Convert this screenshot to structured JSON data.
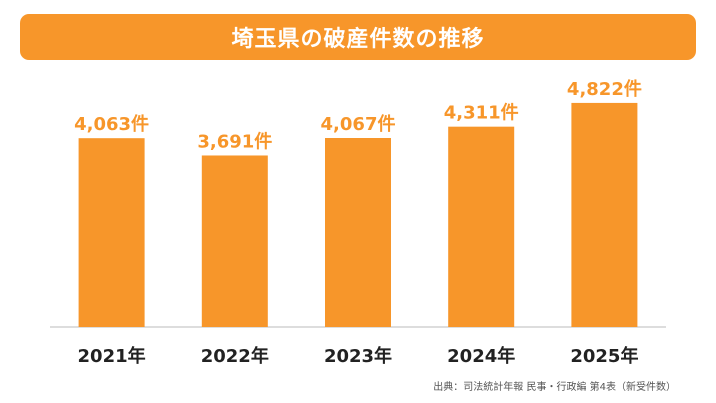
{
  "title": "埼玉県の破産件数の推移",
  "source": "出典：司法統計年報 民事・行政編 第4表（新受件数）",
  "colors": {
    "bar": "#f7962a",
    "value_label": "#f7962a",
    "axis": "#bbbbbb",
    "category_label": "#222222",
    "title_bg": "#f7962a"
  },
  "chart_data": {
    "type": "bar",
    "title": "埼玉県の破産件数の推移",
    "categories": [
      "2021年",
      "2022年",
      "2023年",
      "2024年",
      "2025年"
    ],
    "values": [
      4063,
      3691,
      4067,
      4311,
      4822
    ],
    "value_labels": [
      "4,063件",
      "3,691件",
      "4,067件",
      "4,311件",
      "4,822件"
    ],
    "ylim": [
      0,
      5100
    ],
    "grid": false,
    "legend": "none",
    "xlabel": "",
    "ylabel": ""
  }
}
